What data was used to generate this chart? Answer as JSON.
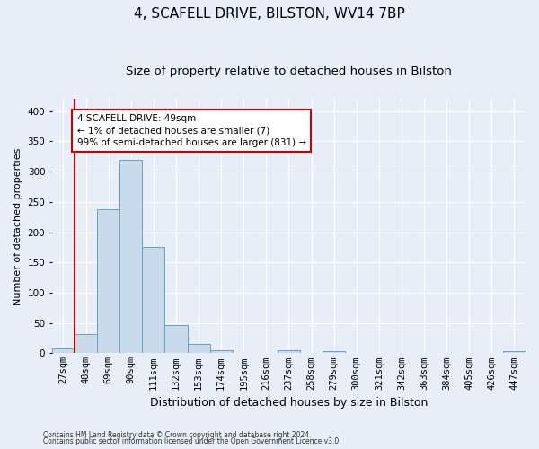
{
  "title1": "4, SCAFELL DRIVE, BILSTON, WV14 7BP",
  "title2": "Size of property relative to detached houses in Bilston",
  "xlabel": "Distribution of detached houses by size in Bilston",
  "ylabel": "Number of detached properties",
  "footnote1": "Contains HM Land Registry data © Crown copyright and database right 2024.",
  "footnote2": "Contains public sector information licensed under the Open Government Licence v3.0.",
  "bar_labels": [
    "27sqm",
    "48sqm",
    "69sqm",
    "90sqm",
    "111sqm",
    "132sqm",
    "153sqm",
    "174sqm",
    "195sqm",
    "216sqm",
    "237sqm",
    "258sqm",
    "279sqm",
    "300sqm",
    "321sqm",
    "342sqm",
    "363sqm",
    "384sqm",
    "405sqm",
    "426sqm",
    "447sqm"
  ],
  "bar_values": [
    8,
    32,
    238,
    319,
    175,
    46,
    15,
    5,
    0,
    0,
    5,
    0,
    3,
    0,
    0,
    0,
    0,
    0,
    0,
    0,
    3
  ],
  "bar_color": "#c9daea",
  "bar_edge_color": "#6a9fc0",
  "ylim": [
    0,
    420
  ],
  "yticks": [
    0,
    50,
    100,
    150,
    200,
    250,
    300,
    350,
    400
  ],
  "annotation_text": "4 SCAFELL DRIVE: 49sqm\n← 1% of detached houses are smaller (7)\n99% of semi-detached houses are larger (831) →",
  "annotation_box_color": "#ffffff",
  "annotation_box_edge": "#cc0000",
  "vline_color": "#cc0000",
  "background_color": "#e8eef8",
  "grid_color": "#ffffff",
  "title1_fontsize": 11,
  "title2_fontsize": 9.5,
  "ylabel_fontsize": 8,
  "xlabel_fontsize": 9,
  "tick_fontsize": 7.5,
  "footnote_fontsize": 5.5,
  "annotation_fontsize": 7.5
}
